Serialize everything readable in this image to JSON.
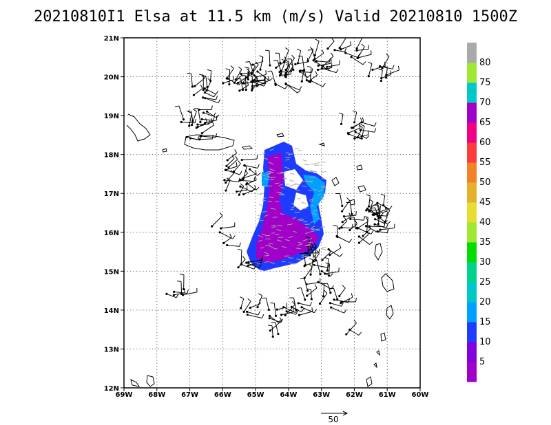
{
  "title": "20210810I1 Elsa at 11.5 km (m/s) Valid 20210810 1500Z",
  "map": {
    "lon_range": [
      -69,
      -60
    ],
    "lat_range": [
      12,
      21
    ],
    "x_ticks": [
      {
        "value": -69,
        "label": "69W"
      },
      {
        "value": -68,
        "label": "68W"
      },
      {
        "value": -67,
        "label": "67W"
      },
      {
        "value": -66,
        "label": "66W"
      },
      {
        "value": -65,
        "label": "65W"
      },
      {
        "value": -64,
        "label": "64W"
      },
      {
        "value": -63,
        "label": "63W"
      },
      {
        "value": -62,
        "label": "62W"
      },
      {
        "value": -61,
        "label": "61W"
      },
      {
        "value": -60,
        "label": "60W"
      }
    ],
    "y_ticks": [
      {
        "value": 12,
        "label": "12N"
      },
      {
        "value": 13,
        "label": "13N"
      },
      {
        "value": 14,
        "label": "14N"
      },
      {
        "value": 15,
        "label": "15N"
      },
      {
        "value": 16,
        "label": "16N"
      },
      {
        "value": 17,
        "label": "17N"
      },
      {
        "value": 18,
        "label": "18N"
      },
      {
        "value": 19,
        "label": "19N"
      },
      {
        "value": 20,
        "label": "20N"
      },
      {
        "value": 21,
        "label": "21N"
      }
    ],
    "grid": "dotted"
  },
  "colorbar": {
    "colors": [
      "#a000c8",
      "#8200dc",
      "#1e3cff",
      "#00a0ff",
      "#00c8c8",
      "#00d28c",
      "#00dc00",
      "#a0e632",
      "#e6dc32",
      "#e6af2d",
      "#f08228",
      "#fa3c3c",
      "#f00082",
      "#a000c8",
      "#00c8c8",
      "#a0e632",
      "#aaaaaa"
    ],
    "labels": [
      "5",
      "10",
      "15",
      "20",
      "25",
      "30",
      "35",
      "40",
      "45",
      "50",
      "55",
      "60",
      "65",
      "70",
      "75",
      "80"
    ]
  },
  "scale_vector": {
    "label": "50"
  }
}
